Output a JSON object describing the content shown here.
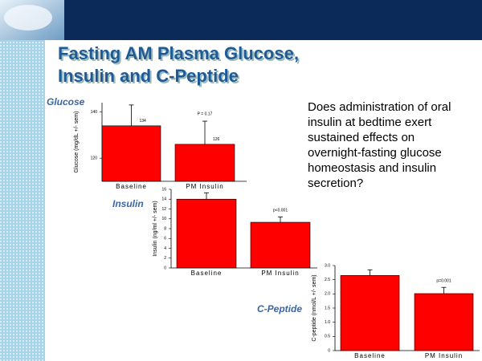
{
  "slide": {
    "title_lines": [
      "Fasting AM Plasma Glucose,",
      "Insulin and C-Peptide"
    ],
    "question": "Does administration of oral insulin at bedtime exert sustained effects on overnight-fasting glucose homeostasis and insulin secretion?"
  },
  "chart_data": [
    {
      "type": "bar",
      "title": "Glucose",
      "y_label": "Glucose (mg/dL +/- sem)",
      "categories": [
        "Baseline",
        "PM Insulin"
      ],
      "values": [
        134,
        126
      ],
      "errors": [
        9,
        10
      ],
      "color": "#ff0000",
      "ylim": [
        110,
        144
      ],
      "yticks": [
        120,
        140
      ],
      "show_value_labels": true,
      "annotation": "P = 0.17"
    },
    {
      "type": "bar",
      "title": "Insulin",
      "y_label": "Insulin (ng/ml +/- sem)",
      "categories": [
        "Baseline",
        "PM Insulin"
      ],
      "values": [
        14,
        9.3
      ],
      "errors": [
        1.3,
        1.1
      ],
      "color": "#ff0000",
      "ylim": [
        0,
        16
      ],
      "yticks": [
        0,
        2,
        4,
        6,
        8,
        10,
        12,
        14,
        16
      ],
      "show_value_labels": false,
      "annotation": "p<0.001"
    },
    {
      "type": "bar",
      "title": "C-Peptide",
      "y_label": "C-peptide (nmol/L +/- sem)",
      "categories": [
        "Baseline",
        "PM Insulin"
      ],
      "values": [
        2.65,
        2.01
      ],
      "errors": [
        0.2,
        0.22
      ],
      "color": "#ff0000",
      "ylim": [
        0,
        3
      ],
      "yticks": [
        0,
        0.5,
        {
          "value": 1,
          "label": "1.0"
        },
        1.5,
        {
          "value": 2,
          "label": "2.0"
        },
        2.5,
        {
          "value": 3,
          "label": "3.0"
        }
      ],
      "show_value_labels": false,
      "annotation": "p=0.001"
    }
  ]
}
